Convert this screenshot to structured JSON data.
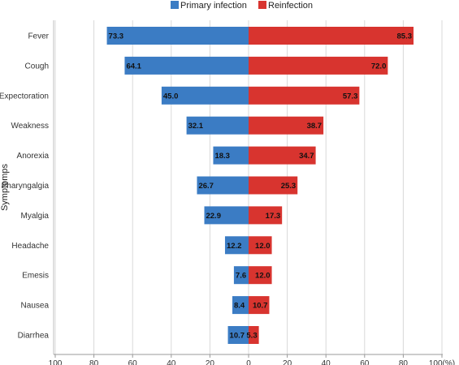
{
  "chart_data": {
    "type": "bar",
    "orientation": "horizontal-diverging",
    "categories": [
      "Fever",
      "Cough",
      "Expectoration",
      "Weakness",
      "Anorexia",
      "Pharyngalgia",
      "Myalgia",
      "Headache",
      "Emesis",
      "Nausea",
      "Diarrhea"
    ],
    "series": [
      {
        "name": "Primary infection",
        "color": "#3b7cc4",
        "direction": "left",
        "values": [
          73.3,
          64.1,
          45.0,
          32.1,
          18.3,
          26.7,
          22.9,
          12.2,
          7.6,
          8.4,
          10.7
        ]
      },
      {
        "name": "Reinfection",
        "color": "#d8342f",
        "direction": "right",
        "values": [
          85.3,
          72.0,
          57.3,
          38.7,
          34.7,
          25.3,
          17.3,
          12.0,
          12.0,
          10.7,
          5.3
        ]
      }
    ],
    "ylabel": "Symptomps",
    "x_ticks": [
      "100",
      "80",
      "60",
      "40",
      "20",
      "0",
      "20",
      "40",
      "60",
      "80",
      "100(%)"
    ],
    "xlim": [
      -100,
      100
    ],
    "grid": "vertical",
    "legend": "top-center"
  }
}
